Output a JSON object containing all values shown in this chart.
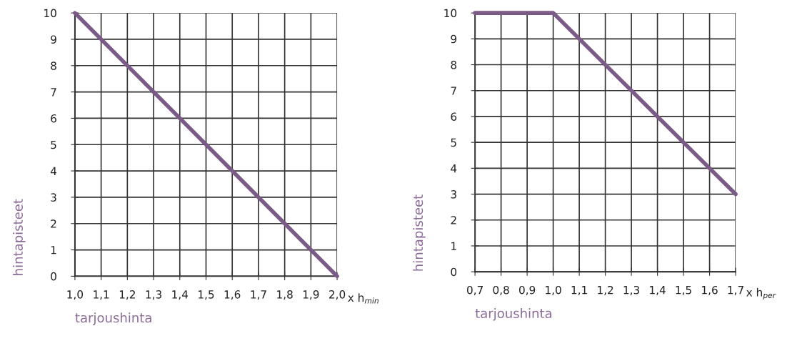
{
  "chart_data": [
    {
      "type": "line",
      "xlabel": "tarjoushinta",
      "ylabel": "hintapisteet",
      "annotations": [
        "x h$_{min}$"
      ],
      "x": [
        1.0,
        2.0
      ],
      "series": [
        {
          "color": "#7b5a88",
          "values": [
            10,
            0
          ]
        }
      ],
      "xlim": [
        1.0,
        2.0
      ],
      "ylim": [
        0,
        10
      ],
      "xticks": [
        {
          "value": 1.0,
          "label": "1,0"
        },
        {
          "value": 1.1,
          "label": "1,1"
        },
        {
          "value": 1.2,
          "label": "1,2"
        },
        {
          "value": 1.3,
          "label": "1,3"
        },
        {
          "value": 1.4,
          "label": "1,4"
        },
        {
          "value": 1.5,
          "label": "1,5"
        },
        {
          "value": 1.6,
          "label": "1,6"
        },
        {
          "value": 1.7,
          "label": "1,7"
        },
        {
          "value": 1.8,
          "label": "1,8"
        },
        {
          "value": 1.9,
          "label": "1,9"
        },
        {
          "value": 2.0,
          "label": "2,0"
        }
      ],
      "yticks": [
        0,
        1,
        2,
        3,
        4,
        5,
        6,
        7,
        8,
        9,
        10
      ],
      "grid": true,
      "marker": "none",
      "line_style": "solid"
    },
    {
      "type": "line",
      "xlabel": "tarjoushinta",
      "ylabel": "hintapisteet",
      "annotations": [
        "x h$_{per}$"
      ],
      "x": [
        0.7,
        1.0,
        1.7
      ],
      "series": [
        {
          "color": "#7b5a88",
          "values": [
            10,
            10,
            3
          ]
        }
      ],
      "xlim": [
        0.7,
        1.7
      ],
      "ylim": [
        0,
        10
      ],
      "xticks": [
        {
          "value": 0.7,
          "label": "0,7"
        },
        {
          "value": 0.8,
          "label": "0,8"
        },
        {
          "value": 0.9,
          "label": "0,9"
        },
        {
          "value": 1.0,
          "label": "1,0"
        },
        {
          "value": 1.1,
          "label": "1,1"
        },
        {
          "value": 1.2,
          "label": "1,2"
        },
        {
          "value": 1.3,
          "label": "1,3"
        },
        {
          "value": 1.4,
          "label": "1,4"
        },
        {
          "value": 1.5,
          "label": "1,5"
        },
        {
          "value": 1.6,
          "label": "1,6"
        },
        {
          "value": 1.7,
          "label": "1,7"
        }
      ],
      "yticks": [
        0,
        1,
        2,
        3,
        4,
        5,
        6,
        7,
        8,
        9,
        10
      ],
      "grid": true,
      "marker": "none",
      "line_style": "solid"
    }
  ]
}
